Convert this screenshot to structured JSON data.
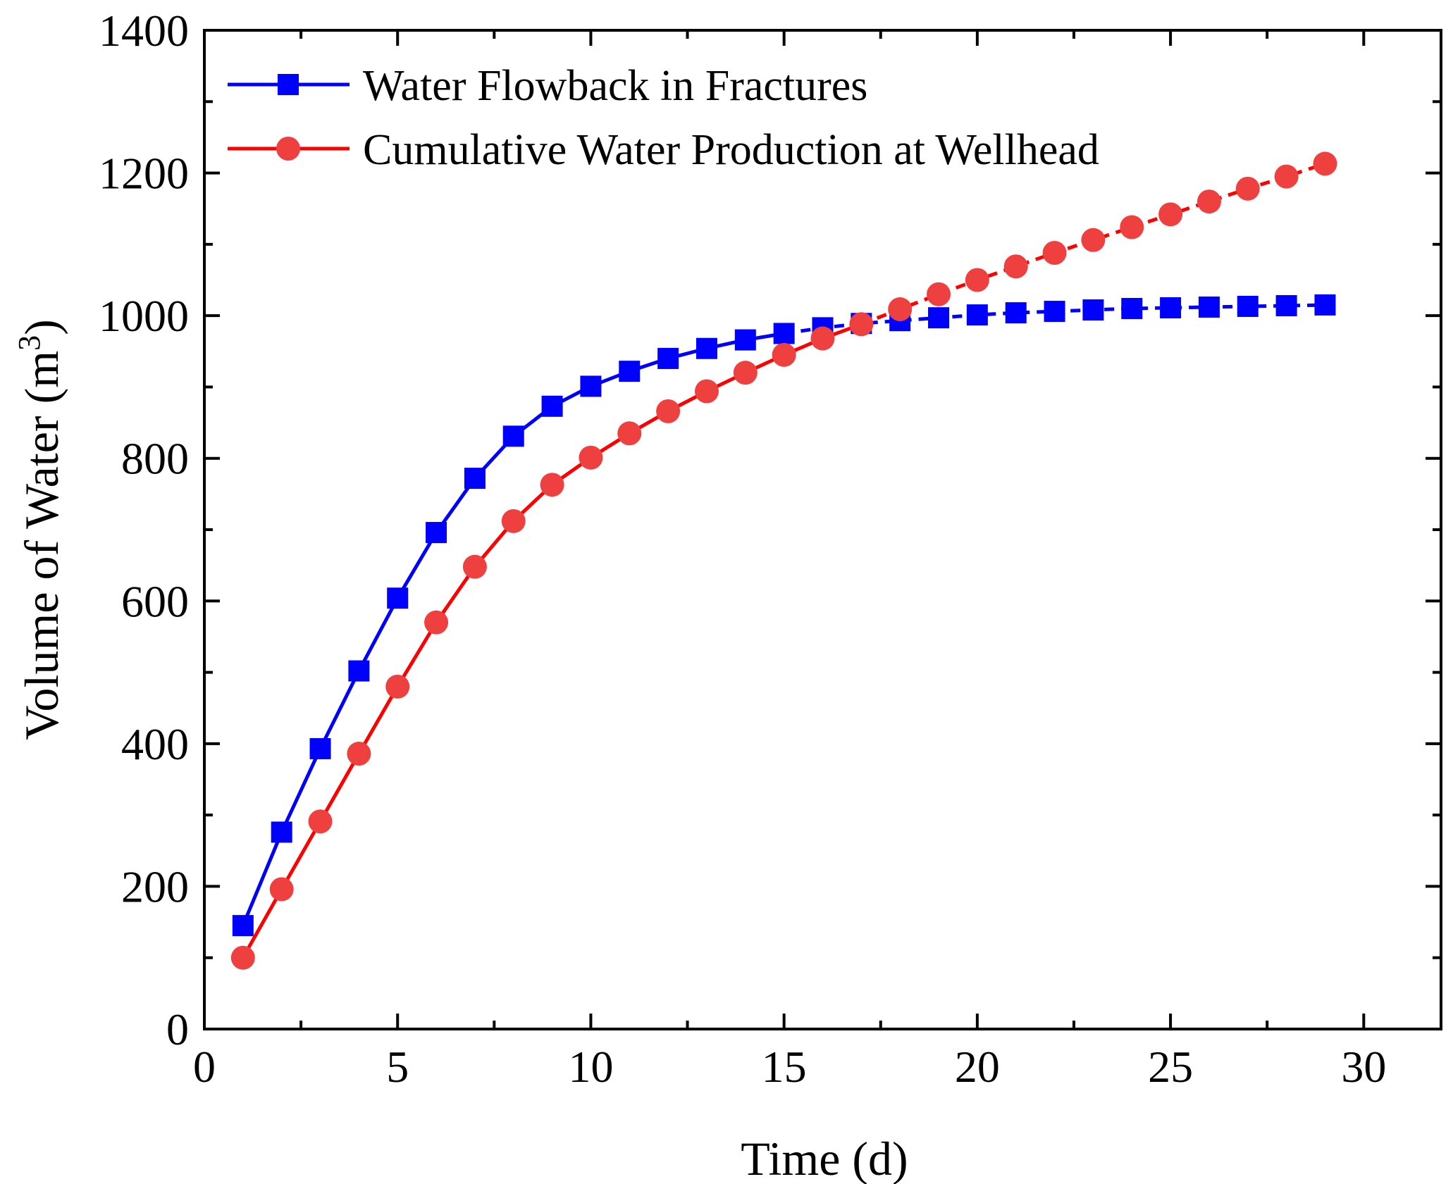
{
  "chart_data": {
    "type": "line",
    "title": "",
    "xlabel": "Time (d)",
    "ylabel": "Volume of Water (m",
    "ylabel_sup": "3",
    "ylabel_close": ")",
    "xlim": [
      0,
      32
    ],
    "ylim": [
      0,
      1400
    ],
    "x_ticks": [
      0,
      5,
      10,
      15,
      20,
      25,
      30
    ],
    "x_tick_labels": [
      "0",
      "5",
      "10",
      "15",
      "20",
      "25",
      "30"
    ],
    "y_ticks": [
      0,
      200,
      400,
      600,
      800,
      1000,
      1200,
      1400
    ],
    "y_tick_labels": [
      "0",
      "200",
      "400",
      "600",
      "800",
      "1000",
      "1200",
      "1400"
    ],
    "grid": false,
    "legend_position": "top-left",
    "x": [
      1,
      2,
      3,
      4,
      5,
      6,
      7,
      8,
      9,
      10,
      11,
      12,
      13,
      14,
      15,
      16,
      17,
      18,
      19,
      20,
      21,
      22,
      23,
      24,
      25,
      26,
      27,
      28,
      29
    ],
    "series": [
      {
        "name": "Water Flowback in Fractures",
        "color": "#0000ff",
        "marker": "square",
        "dashed_from_x": 15,
        "values": [
          145,
          276,
          393,
          502,
          604,
          696,
          772,
          831,
          873,
          901,
          922,
          940,
          954,
          966,
          975,
          983,
          989,
          993,
          997,
          1001,
          1004,
          1006,
          1008,
          1010,
          1011,
          1012,
          1013,
          1014,
          1015
        ]
      },
      {
        "name": "Cumulative Water Production at Wellhead",
        "color": "#ff0000",
        "marker_fill": "#ef4040",
        "marker": "circle",
        "dashed_from_x": 17,
        "values": [
          100,
          196,
          291,
          386,
          480,
          570,
          648,
          712,
          763,
          801,
          835,
          866,
          894,
          920,
          945,
          968,
          988,
          1009,
          1030,
          1050,
          1069,
          1088,
          1106,
          1124,
          1142,
          1160,
          1178,
          1195,
          1213
        ]
      }
    ]
  }
}
